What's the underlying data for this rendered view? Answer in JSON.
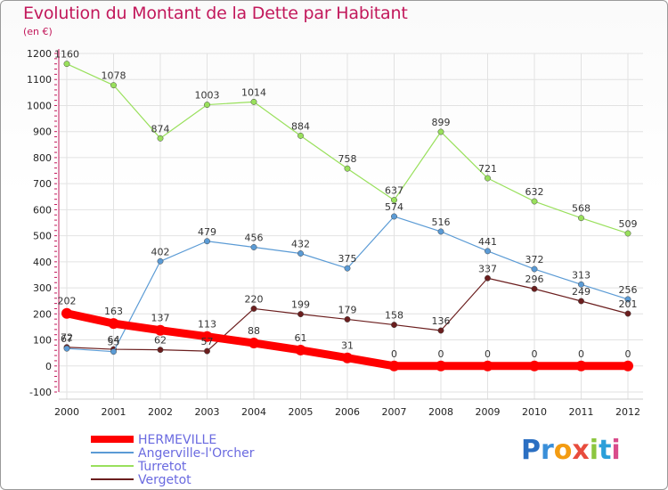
{
  "title": "Evolution du Montant de la Dette par Habitant",
  "unit": "(en €)",
  "logo": {
    "text": "Proxiti",
    "colors": [
      "#2b6fc2",
      "#3a8fd9",
      "#f39c12",
      "#e84c3d",
      "#8cc63f",
      "#2b9fd9",
      "#d94c8c"
    ]
  },
  "chart_data": {
    "type": "line",
    "x": [
      "2000",
      "2001",
      "2002",
      "2003",
      "2004",
      "2005",
      "2006",
      "2007",
      "2008",
      "2009",
      "2010",
      "2011",
      "2012"
    ],
    "ylim": [
      -100,
      1200
    ],
    "yticks": [
      "-100",
      "0",
      "100",
      "200",
      "300",
      "400",
      "500",
      "600",
      "700",
      "800",
      "900",
      "1000",
      "1100",
      "1200"
    ],
    "grid": true,
    "legend_position": "bottom-left",
    "series": [
      {
        "name": "HERMEVILLE",
        "color": "#ff0000",
        "values": [
          202,
          163,
          137,
          113,
          88,
          61,
          31,
          0,
          0,
          0,
          0,
          0,
          0
        ],
        "labels": [
          "202",
          "163",
          "137",
          "113",
          "88",
          "61",
          "31",
          "0",
          "0",
          "0",
          "0",
          "0",
          "0"
        ]
      },
      {
        "name": "Angerville-l'Orcher",
        "color": "#5b9bd5",
        "values": [
          67,
          55,
          402,
          479,
          456,
          432,
          375,
          574,
          516,
          441,
          372,
          313,
          256
        ],
        "labels": [
          "67",
          "55",
          "402",
          "479",
          "456",
          "432",
          "375",
          "574",
          "516",
          "441",
          "372",
          "313",
          "256"
        ]
      },
      {
        "name": "Turretot",
        "color": "#99e05c",
        "values": [
          1160,
          1078,
          874,
          1003,
          1014,
          884,
          758,
          637,
          899,
          721,
          632,
          568,
          509
        ],
        "labels": [
          "1160",
          "1078",
          "874",
          "1003",
          "1014",
          "884",
          "758",
          "637",
          "899",
          "721",
          "632",
          "568",
          "509"
        ]
      },
      {
        "name": "Vergetot",
        "color": "#6b1e1e",
        "values": [
          72,
          64,
          62,
          57,
          220,
          199,
          179,
          158,
          136,
          337,
          296,
          249,
          201
        ],
        "labels": [
          "72",
          "64",
          "62",
          "57",
          "220",
          "199",
          "179",
          "158",
          "136",
          "337",
          "296",
          "249",
          "201"
        ]
      }
    ]
  }
}
